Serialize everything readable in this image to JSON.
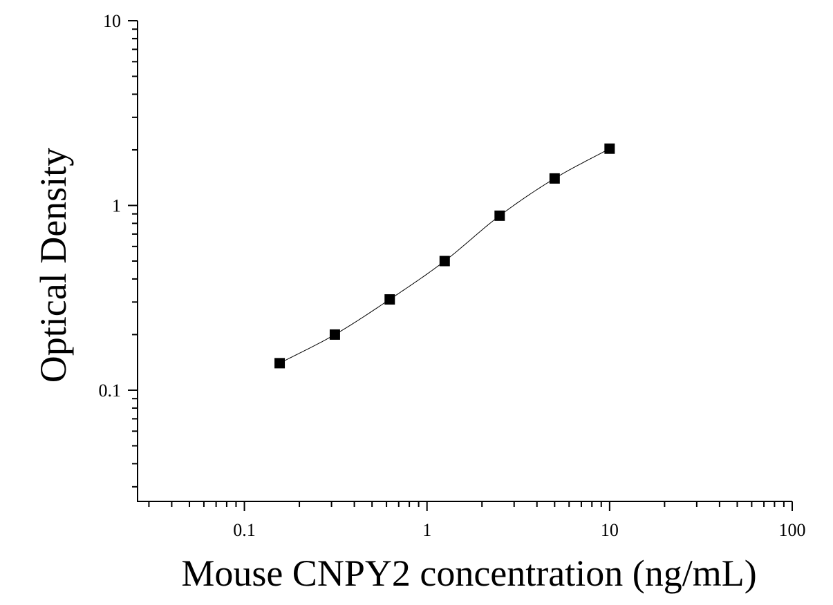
{
  "chart_data": {
    "type": "scatter",
    "xlabel": "Mouse CNPY2 concentration (ng/mL)",
    "ylabel": "Optical Density",
    "x_scale": "log",
    "y_scale": "log",
    "xlim": [
      0.026,
      100
    ],
    "ylim": [
      0.025,
      10
    ],
    "x_tick_labels": [
      "0.1",
      "1",
      "10",
      "100"
    ],
    "x_tick_values": [
      0.1,
      1,
      10,
      100
    ],
    "y_tick_labels": [
      "0.1",
      "1",
      "10"
    ],
    "y_tick_values": [
      0.1,
      1,
      10
    ],
    "grid": false,
    "legend": "none",
    "series": [
      {
        "marker": "square",
        "curve": "fitted",
        "color": "#000000",
        "x": [
          0.156,
          0.313,
          0.625,
          1.25,
          2.5,
          5,
          10
        ],
        "y": [
          0.14,
          0.2,
          0.31,
          0.5,
          0.88,
          1.4,
          2.03
        ]
      }
    ]
  }
}
